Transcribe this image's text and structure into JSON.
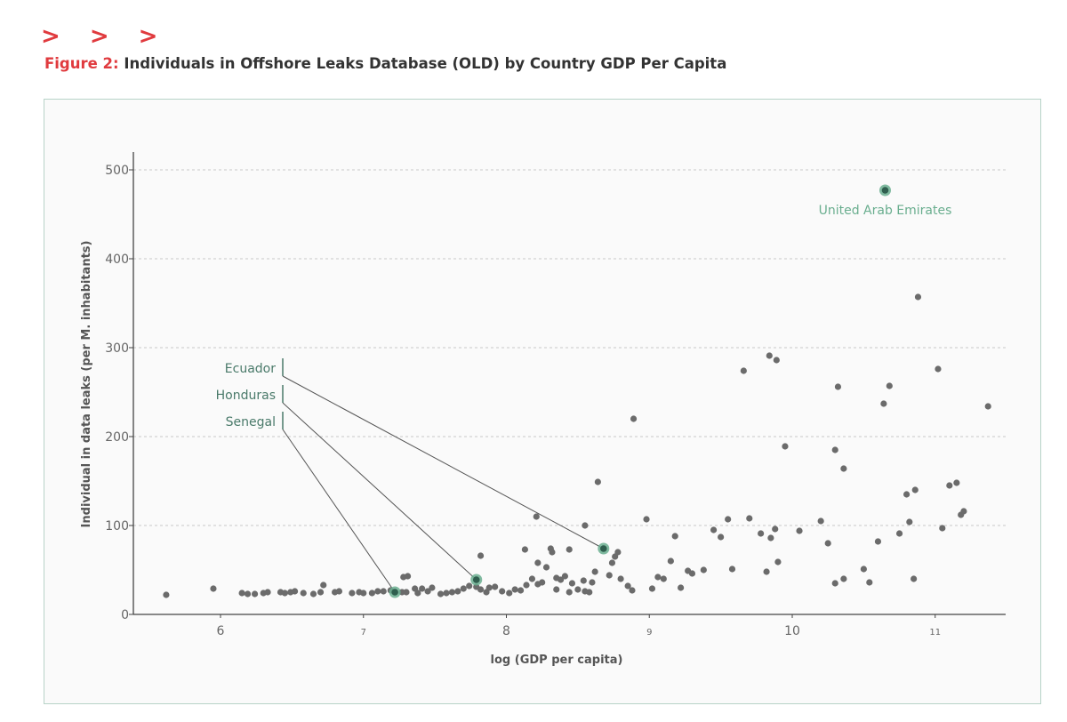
{
  "header": {
    "chevrons": "> > >",
    "figure_prefix": "Figure 2:",
    "figure_title": "Individuals in Offshore Leaks Database (OLD) by Country GDP Per Capita"
  },
  "colors": {
    "accent": "#e03a3e",
    "point": "#6b6b6b",
    "highlight": "#2f5e4e",
    "highlight_halo": "#6aae8f",
    "annotation": "#4a7a6a"
  },
  "chart_data": {
    "type": "scatter",
    "title": "Individuals in Offshore Leaks Database (OLD) by Country GDP Per Capita",
    "xlabel": "log (GDP per capita)",
    "ylabel": "Individual in data leaks (per M. inhabitants)",
    "xlim": [
      5.4,
      12.2
    ],
    "ylim": [
      0,
      520
    ],
    "x_ticks": [
      {
        "value": 6,
        "label": "6",
        "major": true
      },
      {
        "value": 7,
        "label": "7",
        "major": false
      },
      {
        "value": 8,
        "label": "8",
        "major": true
      },
      {
        "value": 9,
        "label": "9",
        "major": false
      },
      {
        "value": 10,
        "label": "10",
        "major": true
      },
      {
        "value": 11,
        "label": "11",
        "major": false
      }
    ],
    "y_ticks": [
      {
        "value": 0,
        "label": "0"
      },
      {
        "value": 100,
        "label": "100"
      },
      {
        "value": 200,
        "label": "200"
      },
      {
        "value": 300,
        "label": "300"
      },
      {
        "value": 400,
        "label": "400"
      },
      {
        "value": 500,
        "label": "500"
      }
    ],
    "grid": "horizontal dashed",
    "points": [
      [
        5.62,
        22
      ],
      [
        5.95,
        29
      ],
      [
        6.15,
        24
      ],
      [
        6.19,
        23
      ],
      [
        6.24,
        23
      ],
      [
        6.3,
        24
      ],
      [
        6.33,
        25
      ],
      [
        6.42,
        25
      ],
      [
        6.45,
        24
      ],
      [
        6.49,
        25
      ],
      [
        6.52,
        26
      ],
      [
        6.58,
        24
      ],
      [
        6.65,
        23
      ],
      [
        6.7,
        25
      ],
      [
        6.72,
        33
      ],
      [
        6.8,
        25
      ],
      [
        6.83,
        26
      ],
      [
        6.92,
        24
      ],
      [
        6.97,
        25
      ],
      [
        7.0,
        24
      ],
      [
        7.06,
        24
      ],
      [
        7.1,
        26
      ],
      [
        7.14,
        26
      ],
      [
        7.19,
        27
      ],
      [
        7.27,
        25
      ],
      [
        7.3,
        25
      ],
      [
        7.38,
        24
      ],
      [
        7.45,
        26
      ],
      [
        7.28,
        42
      ],
      [
        7.31,
        43
      ],
      [
        7.36,
        29
      ],
      [
        7.41,
        29
      ],
      [
        7.48,
        30
      ],
      [
        7.54,
        23
      ],
      [
        7.58,
        24
      ],
      [
        7.62,
        25
      ],
      [
        7.66,
        26
      ],
      [
        7.7,
        29
      ],
      [
        7.74,
        32
      ],
      [
        7.79,
        31
      ],
      [
        7.82,
        28
      ],
      [
        7.86,
        25
      ],
      [
        7.88,
        30
      ],
      [
        7.92,
        31
      ],
      [
        7.97,
        26
      ],
      [
        8.02,
        24
      ],
      [
        8.06,
        28
      ],
      [
        8.1,
        27
      ],
      [
        8.14,
        33
      ],
      [
        8.18,
        40
      ],
      [
        8.22,
        34
      ],
      [
        8.25,
        36
      ],
      [
        8.28,
        53
      ],
      [
        8.31,
        74
      ],
      [
        8.32,
        70
      ],
      [
        8.35,
        41
      ],
      [
        8.38,
        39
      ],
      [
        8.41,
        43
      ],
      [
        8.44,
        73
      ],
      [
        8.46,
        35
      ],
      [
        8.5,
        28
      ],
      [
        8.54,
        38
      ],
      [
        8.58,
        25
      ],
      [
        8.6,
        36
      ],
      [
        8.62,
        48
      ],
      [
        8.72,
        44
      ],
      [
        8.74,
        58
      ],
      [
        8.76,
        65
      ],
      [
        8.78,
        70
      ],
      [
        8.8,
        40
      ],
      [
        8.85,
        32
      ],
      [
        8.88,
        27
      ],
      [
        8.13,
        73
      ],
      [
        8.22,
        58
      ],
      [
        8.35,
        28
      ],
      [
        8.44,
        25
      ],
      [
        8.55,
        26
      ],
      [
        7.82,
        66
      ],
      [
        8.21,
        110
      ],
      [
        8.55,
        100
      ],
      [
        8.64,
        149
      ],
      [
        8.89,
        220
      ],
      [
        8.98,
        107
      ],
      [
        9.02,
        29
      ],
      [
        9.06,
        42
      ],
      [
        9.1,
        40
      ],
      [
        9.15,
        60
      ],
      [
        9.18,
        88
      ],
      [
        9.22,
        30
      ],
      [
        9.27,
        49
      ],
      [
        9.3,
        46
      ],
      [
        9.38,
        50
      ],
      [
        9.45,
        95
      ],
      [
        9.5,
        87
      ],
      [
        9.55,
        107
      ],
      [
        9.58,
        51
      ],
      [
        9.7,
        108
      ],
      [
        9.78,
        91
      ],
      [
        9.82,
        48
      ],
      [
        9.85,
        86
      ],
      [
        9.88,
        96
      ],
      [
        9.9,
        59
      ],
      [
        9.95,
        189
      ],
      [
        9.66,
        274
      ],
      [
        9.84,
        291
      ],
      [
        9.89,
        286
      ],
      [
        10.05,
        94
      ],
      [
        10.2,
        105
      ],
      [
        10.25,
        80
      ],
      [
        10.3,
        185
      ],
      [
        10.3,
        35
      ],
      [
        10.32,
        256
      ],
      [
        10.36,
        164
      ],
      [
        10.36,
        40
      ],
      [
        10.5,
        51
      ],
      [
        10.54,
        36
      ],
      [
        10.6,
        82
      ],
      [
        10.64,
        237
      ],
      [
        10.68,
        257
      ],
      [
        10.75,
        91
      ],
      [
        10.8,
        135
      ],
      [
        10.82,
        104
      ],
      [
        10.86,
        140
      ],
      [
        10.85,
        40
      ],
      [
        10.88,
        357
      ],
      [
        11.02,
        276
      ],
      [
        11.05,
        97
      ],
      [
        11.1,
        145
      ],
      [
        11.15,
        148
      ],
      [
        11.18,
        112
      ],
      [
        11.2,
        116
      ],
      [
        11.37,
        234
      ]
    ],
    "highlights": [
      {
        "name": "Senegal",
        "x": 7.22,
        "y": 25
      },
      {
        "name": "Honduras",
        "x": 7.79,
        "y": 39
      },
      {
        "name": "Ecuador",
        "x": 8.68,
        "y": 74
      },
      {
        "name": "United Arab Emirates",
        "x": 10.65,
        "y": 477
      }
    ]
  }
}
